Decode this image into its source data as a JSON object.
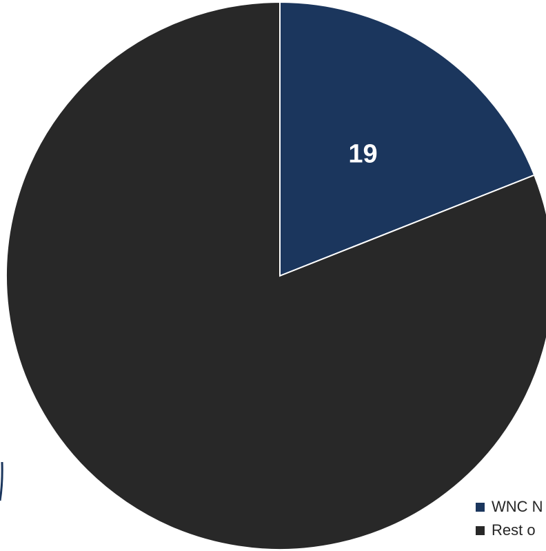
{
  "chart_data": {
    "type": "pie",
    "title": "",
    "slices": [
      {
        "label": "WNC N",
        "value": 19,
        "display_value": "19",
        "color": "#1b365d"
      },
      {
        "label": "Rest o",
        "value": 81,
        "display_value": "",
        "color": "#282828"
      }
    ],
    "start_angle_deg": 0,
    "direction": "clockwise",
    "legend_position": "bottom-right"
  },
  "colors": {
    "background": "#ffffff",
    "slice_border": "#ffffff",
    "label_text": "#ffffff",
    "legend_text": "#262626",
    "edge_accent": "#1b365d"
  }
}
